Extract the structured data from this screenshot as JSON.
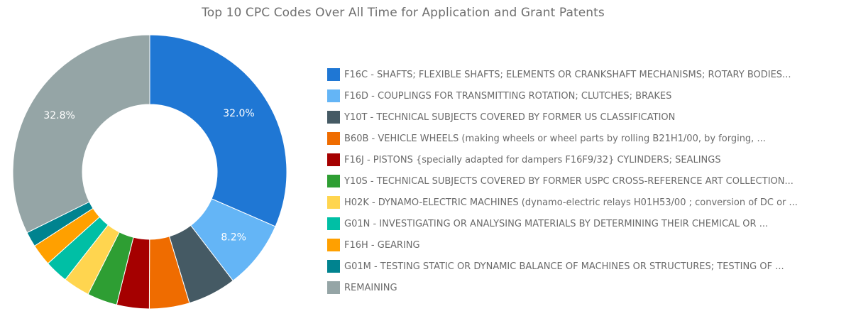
{
  "chart_data": {
    "type": "pie",
    "variant": "donut",
    "title": "Top 10 CPC Codes Over All Time for Application and Grant Patents",
    "legend_position": "right",
    "slices": [
      {
        "label": "F16C - SHAFTS; FLEXIBLE SHAFTS; ELEMENTS OR CRANKSHAFT MECHANISMS; ROTARY BODIES...",
        "value": 32.0,
        "color": "#1f77d4",
        "data_label": "32.0%"
      },
      {
        "label": "F16D - COUPLINGS FOR TRANSMITTING ROTATION; CLUTCHES; BRAKES",
        "value": 8.2,
        "color": "#64b5f6",
        "data_label": "8.2%"
      },
      {
        "label": "Y10T - TECHNICAL SUBJECTS COVERED BY FORMER US CLASSIFICATION",
        "value": 5.8,
        "color": "#455a64",
        "data_label": ""
      },
      {
        "label": "B60B - VEHICLE WHEELS (making wheels or wheel parts by rolling B21H1/00, by forging, ...",
        "value": 4.8,
        "color": "#ef6c00",
        "data_label": ""
      },
      {
        "label": "F16J - PISTONS {specially adapted for dampers F16F9/32} CYLINDERS; SEALINGS",
        "value": 3.9,
        "color": "#a50000",
        "data_label": ""
      },
      {
        "label": "Y10S - TECHNICAL SUBJECTS COVERED BY FORMER USPC CROSS-REFERENCE ART COLLECTION...",
        "value": 3.6,
        "color": "#2e9e33",
        "data_label": ""
      },
      {
        "label": "H02K - DYNAMO-ELECTRIC MACHINES (dynamo-electric relays H01H53/00 ; conversion of DC or ...",
        "value": 3.2,
        "color": "#ffd54f",
        "data_label": ""
      },
      {
        "label": "G01N - INVESTIGATING OR ANALYSING MATERIALS BY DETERMINING THEIR CHEMICAL OR ...",
        "value": 2.8,
        "color": "#00bfa5",
        "data_label": ""
      },
      {
        "label": "F16H - GEARING",
        "value": 2.6,
        "color": "#ffa000",
        "data_label": ""
      },
      {
        "label": "G01M - TESTING STATIC OR DYNAMIC BALANCE OF MACHINES OR STRUCTURES; TESTING OF ...",
        "value": 1.8,
        "color": "#00838f",
        "data_label": ""
      },
      {
        "label": "REMAINING",
        "value": 32.8,
        "color": "#95a5a6",
        "data_label": "32.8%"
      }
    ]
  }
}
